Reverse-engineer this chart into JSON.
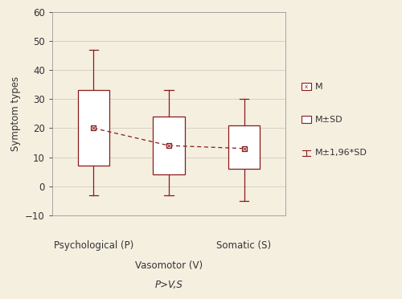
{
  "background_color": "#f5efe0",
  "plot_bg_color": "#f5efe0",
  "box_color": "#8b1a1a",
  "grid_color": "#d0ccc0",
  "spine_color": "#999999",
  "text_color": "#333333",
  "x_positions": [
    1,
    2,
    3
  ],
  "means": [
    20,
    14,
    13
  ],
  "sd_low": [
    7,
    4,
    6
  ],
  "sd_high": [
    33,
    24,
    21
  ],
  "ci_low": [
    -3,
    -3,
    -5
  ],
  "ci_high": [
    47,
    33,
    30
  ],
  "ylabel": "Symptom types",
  "x_label_p": "Psychological (P)",
  "x_label_s": "Somatic (S)",
  "x_label_v": "Vasomotor (V)",
  "subtitle": "P>V,S",
  "ylim": [
    -10,
    60
  ],
  "yticks": [
    -10,
    0,
    10,
    20,
    30,
    40,
    50,
    60
  ],
  "legend_labels": [
    "M",
    "M±SD",
    "M±1,96*SD"
  ],
  "axis_fontsize": 8.5,
  "tick_fontsize": 8.5,
  "box_width": 0.42
}
